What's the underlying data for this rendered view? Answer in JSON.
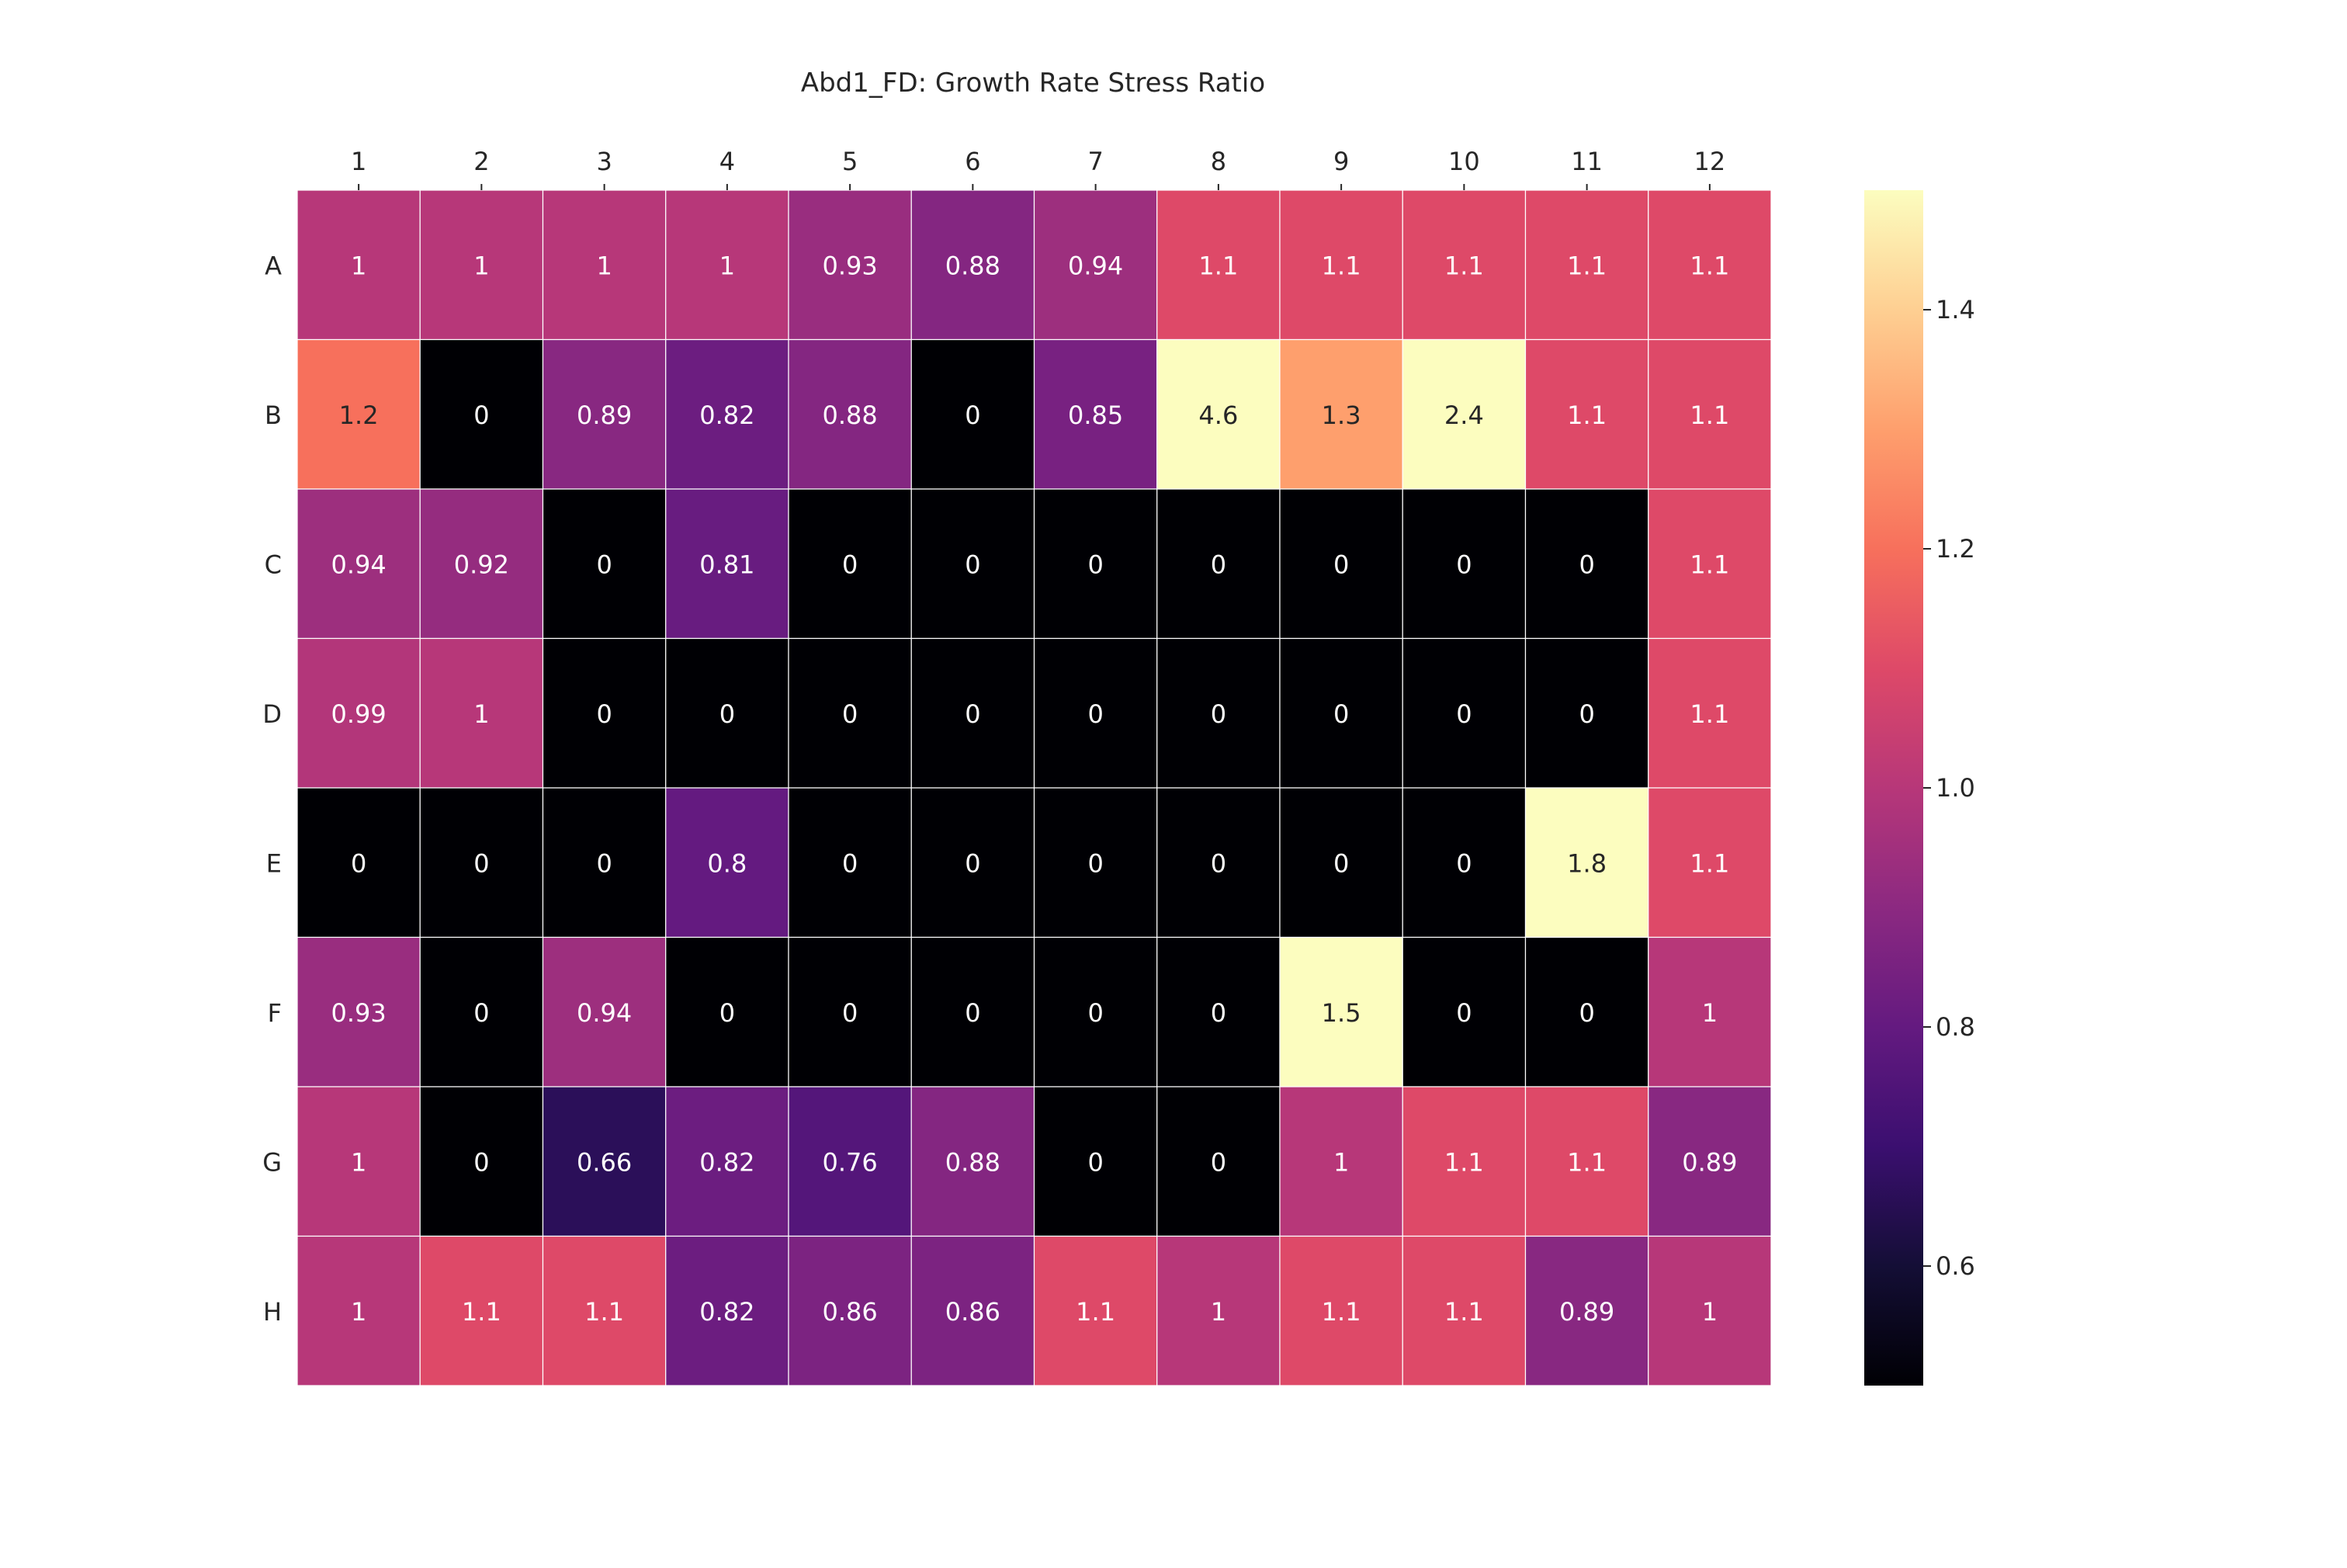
{
  "chart_data": {
    "type": "heatmap",
    "title": "Abd1_FD: Growth Rate Stress Ratio",
    "x_labels": [
      "1",
      "2",
      "3",
      "4",
      "5",
      "6",
      "7",
      "8",
      "9",
      "10",
      "11",
      "12"
    ],
    "y_labels": [
      "A",
      "B",
      "C",
      "D",
      "E",
      "F",
      "G",
      "H"
    ],
    "x_axis_position": "top",
    "values": [
      [
        1,
        1,
        1,
        1,
        0.93,
        0.88,
        0.94,
        1.1,
        1.1,
        1.1,
        1.1,
        1.1
      ],
      [
        1.2,
        0,
        0.89,
        0.82,
        0.88,
        0,
        0.85,
        4.6,
        1.3,
        2.4,
        1.1,
        1.1
      ],
      [
        0.94,
        0.92,
        0,
        0.81,
        0,
        0,
        0,
        0,
        0,
        0,
        0,
        1.1
      ],
      [
        0.99,
        1,
        0,
        0,
        0,
        0,
        0,
        0,
        0,
        0,
        0,
        1.1
      ],
      [
        0,
        0,
        0,
        0.8,
        0,
        0,
        0,
        0,
        0,
        0,
        1.8,
        1.1
      ],
      [
        0.93,
        0,
        0.94,
        0,
        0,
        0,
        0,
        0,
        1.5,
        0,
        0,
        1
      ],
      [
        1,
        0,
        0.66,
        0.82,
        0.76,
        0.88,
        0,
        0,
        1,
        1.1,
        1.1,
        0.89
      ],
      [
        1,
        1.1,
        1.1,
        0.82,
        0.86,
        0.86,
        1.1,
        1,
        1.1,
        1.1,
        0.89,
        1
      ]
    ],
    "cell_labels": [
      [
        "1",
        "1",
        "1",
        "1",
        "0.93",
        "0.88",
        "0.94",
        "1.1",
        "1.1",
        "1.1",
        "1.1",
        "1.1"
      ],
      [
        "1.2",
        "0",
        "0.89",
        "0.82",
        "0.88",
        "0",
        "0.85",
        "4.6",
        "1.3",
        "2.4",
        "1.1",
        "1.1"
      ],
      [
        "0.94",
        "0.92",
        "0",
        "0.81",
        "0",
        "0",
        "0",
        "0",
        "0",
        "0",
        "0",
        "1.1"
      ],
      [
        "0.99",
        "1",
        "0",
        "0",
        "0",
        "0",
        "0",
        "0",
        "0",
        "0",
        "0",
        "1.1"
      ],
      [
        "0",
        "0",
        "0",
        "0.8",
        "0",
        "0",
        "0",
        "0",
        "0",
        "0",
        "1.8",
        "1.1"
      ],
      [
        "0.93",
        "0",
        "0.94",
        "0",
        "0",
        "0",
        "0",
        "0",
        "1.5",
        "0",
        "0",
        "1"
      ],
      [
        "1",
        "0",
        "0.66",
        "0.82",
        "0.76",
        "0.88",
        "0",
        "0",
        "1",
        "1.1",
        "1.1",
        "0.89"
      ],
      [
        "1",
        "1.1",
        "1.1",
        "0.82",
        "0.86",
        "0.86",
        "1.1",
        "1",
        "1.1",
        "1.1",
        "0.89",
        "1"
      ]
    ],
    "colormap": "magma",
    "color_range": [
      0.5,
      1.5
    ],
    "colorbar_ticks": [
      0.6,
      0.8,
      1.0,
      1.2,
      1.4
    ],
    "colorbar_tick_labels": [
      "0.6",
      "0.8",
      "1.0",
      "1.2",
      "1.4"
    ],
    "grid_line_color": "#ffffff",
    "grid": false,
    "colorbar_placement": "right"
  }
}
